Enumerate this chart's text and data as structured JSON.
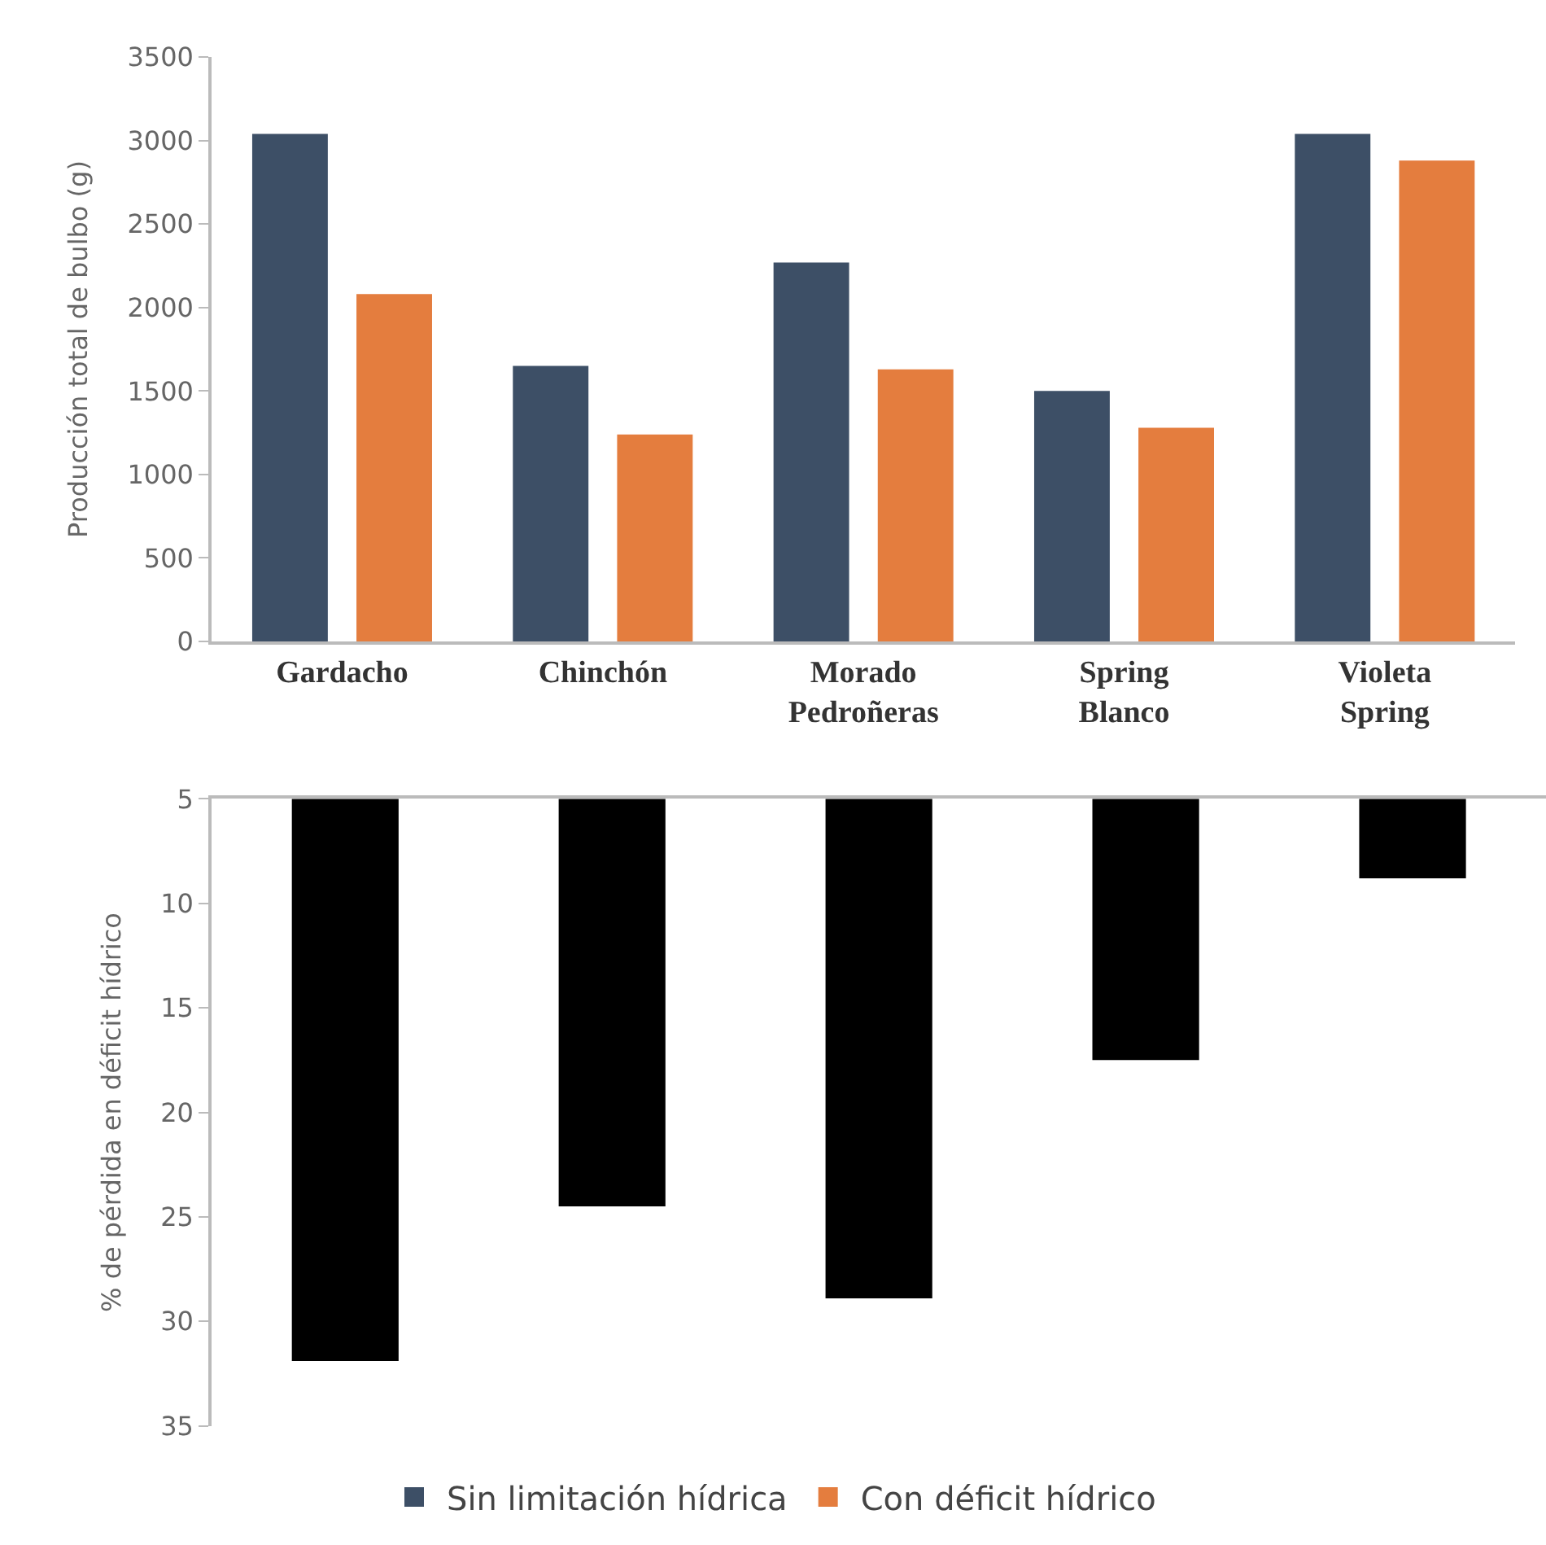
{
  "chart_data": [
    {
      "type": "bar",
      "ylabel": "Producción total de bulbo (g)",
      "categories": [
        "Gardacho",
        "Chinchón",
        "Morado Pedroñeras",
        "Spring Blanco",
        "Violeta Spring"
      ],
      "series": [
        {
          "name": "Sin limitación hídrica",
          "color": "#3d4f66",
          "values": [
            3040,
            1650,
            2270,
            1500,
            3040
          ]
        },
        {
          "name": "Con déficit hídrico",
          "color": "#e47d3e",
          "values": [
            2080,
            1240,
            1630,
            1280,
            2880
          ]
        }
      ],
      "ylim": [
        0,
        3500
      ],
      "yticks": [
        0,
        500,
        1000,
        1500,
        2000,
        2500,
        3000,
        3500
      ],
      "legend": "bottom"
    },
    {
      "type": "bar",
      "ylabel": "% de pérdida en déficit hídrico",
      "categories": [
        null,
        null,
        null,
        null,
        null
      ],
      "values": [
        31.9,
        24.5,
        28.9,
        17.5,
        8.8
      ],
      "color": "#000000",
      "ylim": [
        35,
        5
      ],
      "yticks": [
        5,
        10,
        15,
        20,
        25,
        30,
        35
      ],
      "tick_labels": "y"
    }
  ]
}
